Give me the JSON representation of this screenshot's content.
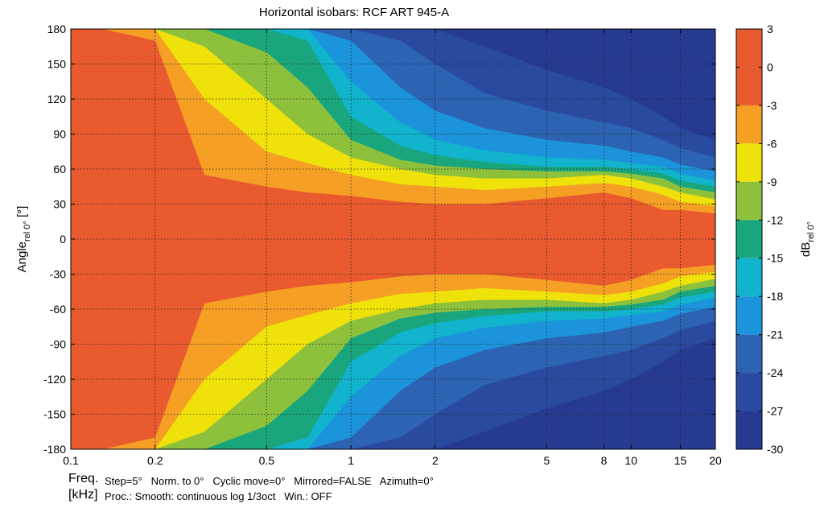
{
  "chart_data": {
    "type": "heatmap",
    "title": "Horizontal isobars: RCF  ART 945-A",
    "xlabel": "Freq. [kHz]",
    "ylabel": "Angle rel 0° [°]",
    "colorbar_label": "dB rel 0°",
    "x_scale": "log",
    "xlim": [
      0.1,
      20
    ],
    "ylim": [
      -180,
      180
    ],
    "x_ticks": [
      {
        "value": 0.1,
        "label": "0.1"
      },
      {
        "value": 0.2,
        "label": "0.2"
      },
      {
        "value": 0.5,
        "label": "0.5"
      },
      {
        "value": 1,
        "label": "1"
      },
      {
        "value": 2,
        "label": "2"
      },
      {
        "value": 5,
        "label": "5"
      },
      {
        "value": 8,
        "label": "8"
      },
      {
        "value": 10,
        "label": "10"
      },
      {
        "value": 15,
        "label": "15"
      },
      {
        "value": 20,
        "label": "20"
      }
    ],
    "y_ticks": [
      180,
      150,
      120,
      90,
      60,
      30,
      0,
      -30,
      -60,
      -90,
      -120,
      -150,
      -180
    ],
    "grid": true,
    "colorbar": {
      "levels": [
        {
          "from": 0,
          "to": 3,
          "color": "#e95a2e"
        },
        {
          "from": -3,
          "to": 0,
          "color": "#e95a2e"
        },
        {
          "from": -6,
          "to": -3,
          "color": "#f5a025"
        },
        {
          "from": -9,
          "to": -6,
          "color": "#eee20a"
        },
        {
          "from": -12,
          "to": -9,
          "color": "#8dc13c"
        },
        {
          "from": -15,
          "to": -12,
          "color": "#1aa67d"
        },
        {
          "from": -18,
          "to": -15,
          "color": "#11b4cc"
        },
        {
          "from": -21,
          "to": -18,
          "color": "#1b94dc"
        },
        {
          "from": -24,
          "to": -21,
          "color": "#2d63b3"
        },
        {
          "from": -27,
          "to": -24,
          "color": "#2a4a9f"
        },
        {
          "from": -30,
          "to": -27,
          "color": "#263a92"
        }
      ],
      "tick_labels": [
        "3",
        "0",
        "-3",
        "-6",
        "-9",
        "-12",
        "-15",
        "-18",
        "-21",
        "-24",
        "-27",
        "-30"
      ]
    },
    "contours_deg": {
      "frequencies_khz": [
        0.1,
        0.13,
        0.2,
        0.3,
        0.5,
        0.7,
        1,
        1.5,
        2,
        3,
        5,
        8,
        10,
        13,
        15,
        20
      ],
      "minus3": [
        180,
        180,
        170,
        55,
        45,
        40,
        37,
        32,
        30,
        30,
        35,
        40,
        35,
        25,
        25,
        22
      ],
      "minus6": [
        180,
        180,
        180,
        120,
        75,
        65,
        55,
        47,
        45,
        42,
        45,
        48,
        45,
        38,
        32,
        28
      ],
      "minus9": [
        180,
        180,
        180,
        165,
        120,
        90,
        70,
        60,
        55,
        52,
        52,
        55,
        52,
        45,
        40,
        34
      ],
      "minus12": [
        180,
        180,
        180,
        180,
        160,
        130,
        85,
        68,
        63,
        60,
        58,
        58,
        56,
        52,
        45,
        40
      ],
      "minus15": [
        180,
        180,
        180,
        180,
        180,
        170,
        105,
        80,
        72,
        66,
        62,
        62,
        60,
        56,
        50,
        45
      ],
      "minus18": [
        180,
        180,
        180,
        180,
        180,
        180,
        135,
        100,
        85,
        76,
        70,
        68,
        65,
        62,
        56,
        50
      ],
      "minus21": [
        180,
        180,
        180,
        180,
        180,
        180,
        170,
        130,
        110,
        95,
        85,
        80,
        75,
        70,
        64,
        58
      ],
      "minus24": [
        180,
        180,
        180,
        180,
        180,
        180,
        180,
        170,
        150,
        125,
        110,
        100,
        95,
        85,
        78,
        70
      ],
      "minus27": [
        180,
        180,
        180,
        180,
        180,
        180,
        180,
        180,
        180,
        165,
        145,
        130,
        120,
        105,
        95,
        85
      ]
    }
  },
  "footer": {
    "freq_label": "Freq.",
    "khz_label": "[kHz]",
    "settings_line1": "Step=5°   Norm. to 0°   Cyclic move=0°   Mirrored=FALSE   Azimuth=0°",
    "settings_line2": "Proc.: Smooth: continuous log 1/3oct   Win.: OFF"
  },
  "ylabel_parts": {
    "main": "Angle",
    "sub": "rel 0°",
    "unit": " [°]"
  },
  "cbar_label_parts": {
    "main": "dB",
    "sub": "rel 0°"
  }
}
